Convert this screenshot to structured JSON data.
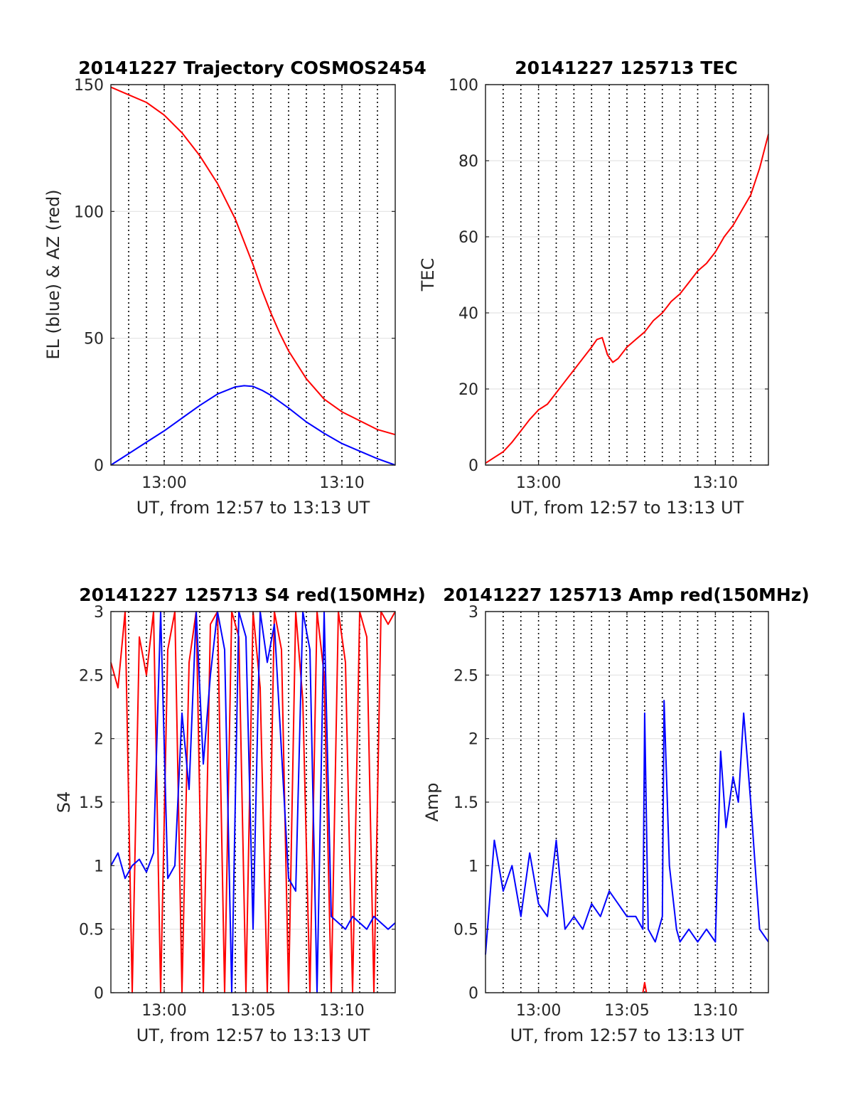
{
  "chart_data": [
    {
      "type": "line",
      "title": "20141227 Trajectory COSMOS2454",
      "xlabel": "UT, from 12:57 to 13:13 UT",
      "ylabel": "EL (blue) & AZ (red)",
      "x_unit": "minutes after 12:57 UT",
      "xlim": [
        0,
        16
      ],
      "ylim": [
        0,
        150
      ],
      "yticks": [
        0,
        50,
        100,
        150
      ],
      "xticks": [
        {
          "x": 3,
          "label": "13:00"
        },
        {
          "x": 13,
          "label": "13:10"
        }
      ],
      "vlines": [
        1,
        2,
        3,
        4,
        5,
        6,
        7,
        8,
        9,
        10,
        11,
        12,
        13,
        14,
        15
      ],
      "grid": true,
      "series": [
        {
          "color": "#ff0000",
          "x": [
            0,
            1,
            2,
            3,
            4,
            5,
            6,
            6.5,
            7,
            7.5,
            8,
            8.5,
            9,
            9.5,
            10,
            11,
            12,
            13,
            14,
            15,
            16
          ],
          "y": [
            149,
            146,
            143,
            138,
            131,
            122,
            111,
            104,
            97,
            88,
            79,
            69,
            60,
            52,
            45,
            34,
            26,
            21,
            17.5,
            14,
            12
          ]
        },
        {
          "color": "#0000ff",
          "x": [
            0,
            1,
            2,
            3,
            4,
            5,
            6,
            7,
            7.5,
            8,
            8.5,
            9,
            10,
            11,
            12,
            13,
            14,
            15,
            16
          ],
          "y": [
            0,
            4.5,
            9,
            13.5,
            18.5,
            23.5,
            28,
            30.8,
            31.3,
            31,
            29.5,
            27.5,
            22.5,
            17,
            12.5,
            8.5,
            5.5,
            2.5,
            0
          ]
        }
      ]
    },
    {
      "type": "line",
      "title": "20141227 125713 TEC",
      "xlabel": "UT, from 12:57 to 13:13 UT",
      "ylabel": "TEC",
      "x_unit": "minutes after 12:57 UT",
      "xlim": [
        0,
        16
      ],
      "ylim": [
        0,
        100
      ],
      "yticks": [
        0,
        20,
        40,
        60,
        80,
        100
      ],
      "xticks": [
        {
          "x": 3,
          "label": "13:00"
        },
        {
          "x": 13,
          "label": "13:10"
        }
      ],
      "vlines": [
        1,
        2,
        3,
        4,
        5,
        6,
        7,
        8,
        9,
        10,
        11,
        12,
        13,
        14,
        15
      ],
      "grid": true,
      "series": [
        {
          "color": "#ff0000",
          "x": [
            0,
            0.5,
            1,
            1.5,
            2,
            2.5,
            3,
            3.5,
            4,
            4.5,
            5,
            5.5,
            6,
            6.3,
            6.6,
            6.9,
            7.2,
            7.5,
            8,
            8.5,
            9,
            9.5,
            10,
            10.5,
            11,
            11.5,
            12,
            12.5,
            13,
            13.5,
            14,
            14.5,
            15,
            15.5,
            16
          ],
          "y": [
            0.5,
            2,
            3.5,
            6,
            9,
            12,
            14.5,
            16,
            19,
            22,
            25,
            28,
            31,
            33,
            33.5,
            29,
            27,
            28,
            31,
            33,
            35,
            38,
            40,
            43,
            45,
            48,
            51,
            53,
            56,
            60,
            63,
            67,
            71,
            78,
            87
          ]
        }
      ]
    },
    {
      "type": "line",
      "title": "20141227 125713 S4 red(150MHz)",
      "xlabel": "UT, from 12:57 to 13:13 UT",
      "ylabel": "S4",
      "x_unit": "minutes after 12:57 UT",
      "xlim": [
        0,
        16
      ],
      "ylim": [
        0,
        3
      ],
      "yticks": [
        0,
        0.5,
        1,
        1.5,
        2,
        2.5,
        3
      ],
      "ytick_labels": [
        "0",
        "0.5",
        "1",
        "1.5",
        "2",
        "2.5",
        "3"
      ],
      "xticks": [
        {
          "x": 3,
          "label": "13:00"
        },
        {
          "x": 8,
          "label": "13:05"
        },
        {
          "x": 13,
          "label": "13:10"
        }
      ],
      "vlines": [
        1,
        2,
        3,
        4,
        5,
        6,
        7,
        8,
        9,
        10,
        11,
        12,
        13,
        14,
        15
      ],
      "grid": true,
      "series": [
        {
          "color": "#ff0000",
          "x": [
            0,
            0.4,
            0.8,
            1.2,
            1.6,
            2,
            2.4,
            2.8,
            3.2,
            3.6,
            4,
            4.4,
            4.8,
            5.2,
            5.6,
            6,
            6.4,
            6.8,
            7.2,
            7.6,
            8,
            8.4,
            8.8,
            9.2,
            9.6,
            10,
            10.4,
            10.8,
            11.2,
            11.6,
            12,
            12.4,
            12.8,
            13.2,
            13.6,
            14,
            14.4,
            14.8,
            15.2,
            15.6,
            16
          ],
          "y": [
            2.6,
            2.4,
            3,
            0,
            2.8,
            2.5,
            3,
            0,
            2.7,
            3,
            0,
            2.6,
            3,
            0,
            2.9,
            3,
            0,
            3,
            2.8,
            0,
            3,
            2.4,
            0,
            3,
            2.7,
            0,
            3,
            2.3,
            0,
            3,
            2.5,
            0,
            3,
            2.6,
            0,
            3,
            2.8,
            0,
            3,
            2.9,
            3
          ]
        },
        {
          "color": "#0000ff",
          "x": [
            0,
            0.4,
            0.8,
            1.2,
            1.6,
            2,
            2.4,
            2.8,
            3.2,
            3.6,
            4,
            4.4,
            4.8,
            5.2,
            5.6,
            6,
            6.4,
            6.8,
            7.2,
            7.6,
            8,
            8.4,
            8.8,
            9.2,
            9.6,
            10,
            10.4,
            10.8,
            11.2,
            11.6,
            12,
            12.4,
            12.8,
            13.2,
            13.6,
            14,
            14.4,
            14.8,
            15.2,
            15.6,
            16
          ],
          "y": [
            1,
            1.1,
            0.9,
            1,
            1.05,
            0.95,
            1.1,
            3,
            0.9,
            1,
            2.2,
            1.6,
            3,
            1.8,
            2.5,
            3,
            2.7,
            0,
            3,
            2.8,
            0.5,
            3,
            2.6,
            2.9,
            1.9,
            0.9,
            0.8,
            3,
            2.7,
            0,
            3,
            0.6,
            0.55,
            0.5,
            0.6,
            0.55,
            0.5,
            0.6,
            0.55,
            0.5,
            0.55
          ]
        }
      ]
    },
    {
      "type": "line",
      "title": "20141227 125713 Amp red(150MHz)",
      "xlabel": "UT, from 12:57 to 13:13 UT",
      "ylabel": "Amp",
      "x_unit": "minutes after 12:57 UT",
      "xlim": [
        0,
        16
      ],
      "ylim": [
        0,
        3
      ],
      "yticks": [
        0,
        0.5,
        1,
        1.5,
        2,
        2.5,
        3
      ],
      "ytick_labels": [
        "0",
        "0.5",
        "1",
        "1.5",
        "2",
        "2.5",
        "3"
      ],
      "xticks": [
        {
          "x": 3,
          "label": "13:00"
        },
        {
          "x": 8,
          "label": "13:05"
        },
        {
          "x": 13,
          "label": "13:10"
        }
      ],
      "vlines": [
        1,
        2,
        3,
        4,
        5,
        6,
        7,
        8,
        9,
        10,
        11,
        12,
        13,
        14,
        15
      ],
      "grid": true,
      "series": [
        {
          "color": "#0000ff",
          "x": [
            0,
            0.5,
            1,
            1.5,
            2,
            2.5,
            3,
            3.5,
            4,
            4.5,
            5,
            5.5,
            6,
            6.5,
            7,
            7.5,
            8,
            8.5,
            8.9,
            9,
            9.2,
            9.6,
            10,
            10.1,
            10.4,
            10.8,
            11,
            11.5,
            12,
            12.5,
            13,
            13.3,
            13.6,
            14,
            14.3,
            14.6,
            15,
            15.5,
            16
          ],
          "y": [
            0.3,
            1.2,
            0.8,
            1.0,
            0.6,
            1.1,
            0.7,
            0.6,
            1.2,
            0.5,
            0.6,
            0.5,
            0.7,
            0.6,
            0.8,
            0.7,
            0.6,
            0.6,
            0.5,
            2.2,
            0.5,
            0.4,
            0.6,
            2.3,
            1.0,
            0.5,
            0.4,
            0.5,
            0.4,
            0.5,
            0.4,
            1.9,
            1.3,
            1.7,
            1.5,
            2.2,
            1.5,
            0.5,
            0.4
          ]
        },
        {
          "color": "#ff0000",
          "x": [
            8.9,
            9.0,
            9.1
          ],
          "y": [
            0,
            0.08,
            0
          ]
        }
      ]
    }
  ]
}
